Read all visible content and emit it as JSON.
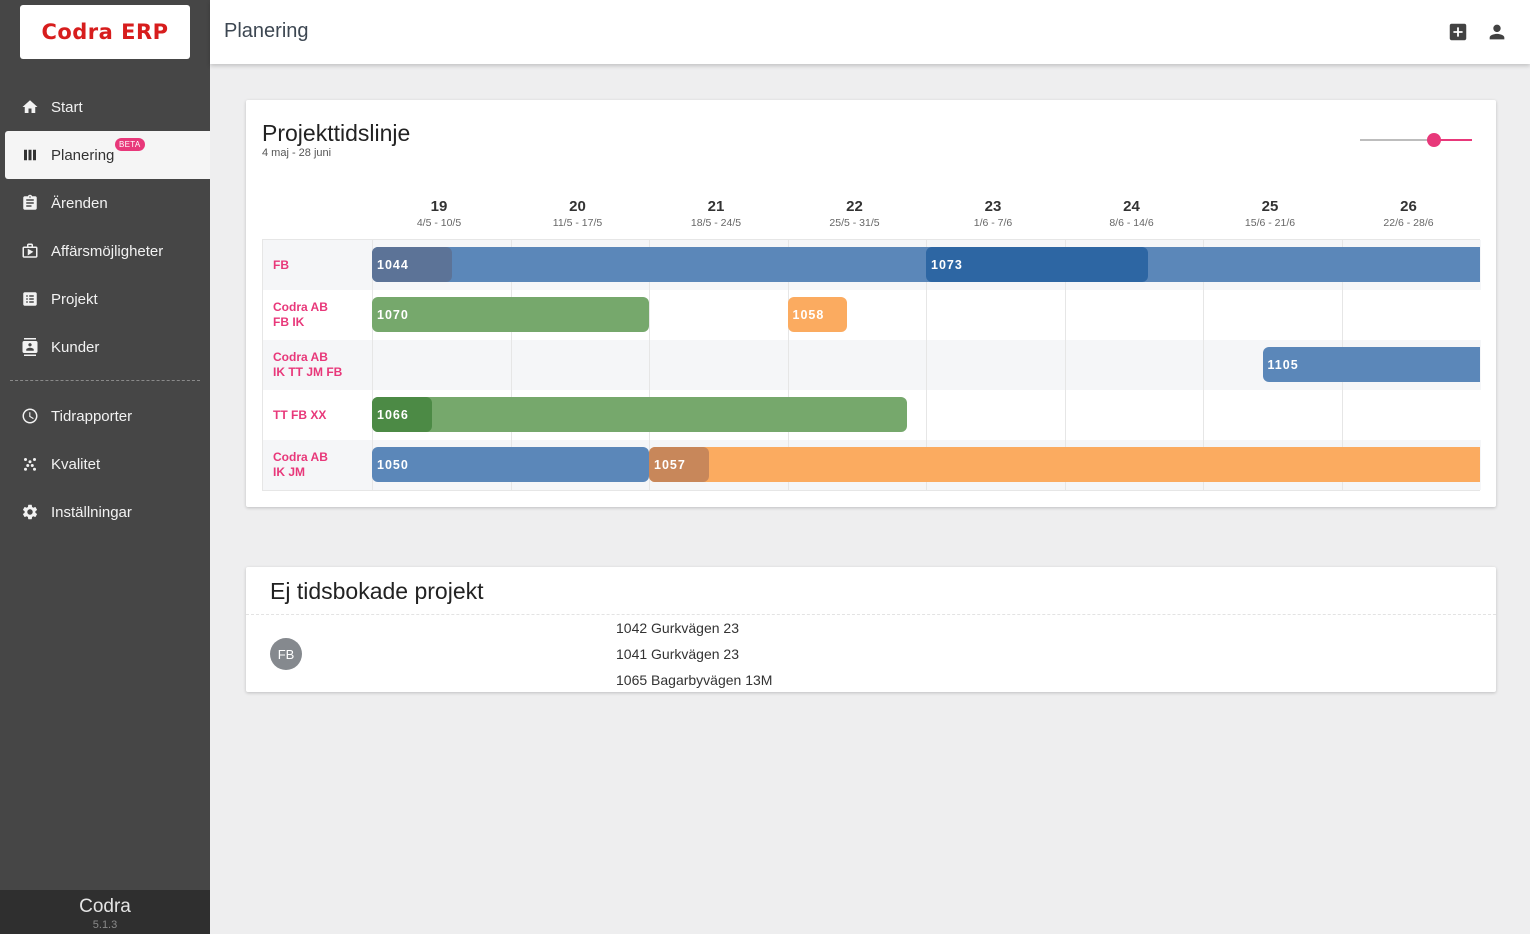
{
  "app": {
    "logo": "Codra ERP",
    "footer_name": "Codra",
    "footer_version": "5.1.3"
  },
  "sidebar": {
    "items": [
      {
        "label": "Start",
        "icon": "home-icon"
      },
      {
        "label": "Planering",
        "icon": "columns-icon",
        "badge": "BETA",
        "active": true
      },
      {
        "label": "Ärenden",
        "icon": "clipboard-icon"
      },
      {
        "label": "Affärsmöjligheter",
        "icon": "business-icon"
      },
      {
        "label": "Projekt",
        "icon": "project-icon"
      },
      {
        "label": "Kunder",
        "icon": "contacts-icon"
      },
      {
        "label": "Tidrapporter",
        "icon": "clock-icon"
      },
      {
        "label": "Kvalitet",
        "icon": "quality-icon"
      },
      {
        "label": "Inställningar",
        "icon": "gear-icon"
      }
    ]
  },
  "header": {
    "title": "Planering",
    "icons": [
      "add-box-icon",
      "account-icon"
    ]
  },
  "timeline": {
    "title": "Projekttidslinje",
    "subtitle": "4 maj - 28 juni",
    "zoom_level": 0.67,
    "weeks": [
      {
        "num": "19",
        "range": "4/5 - 10/5"
      },
      {
        "num": "20",
        "range": "11/5 - 17/5"
      },
      {
        "num": "21",
        "range": "18/5 - 24/5"
      },
      {
        "num": "22",
        "range": "25/5 - 31/5"
      },
      {
        "num": "23",
        "range": "1/6 - 7/6"
      },
      {
        "num": "24",
        "range": "8/6 - 14/6"
      },
      {
        "num": "25",
        "range": "15/6 - 21/6"
      },
      {
        "num": "26",
        "range": "22/6 - 28/6"
      }
    ],
    "rows": [
      {
        "line1": "FB",
        "line2": ""
      },
      {
        "line1": "Codra AB",
        "line2": "FB IK"
      },
      {
        "line1": "Codra AB",
        "line2": "IK TT JM FB"
      },
      {
        "line1": "TT FB XX",
        "line2": ""
      },
      {
        "line1": "Codra AB",
        "line2": "IK JM"
      }
    ],
    "bars": [
      {
        "label": "",
        "row": 0,
        "start_week": 0.0,
        "end_week": 8.0,
        "color": "#5b87b9"
      },
      {
        "label": "1044",
        "row": 0,
        "start_week": 0.0,
        "end_week": 0.58,
        "color": "#5c7397"
      },
      {
        "label": "1073",
        "row": 0,
        "start_week": 4.0,
        "end_week": 5.6,
        "color": "#2d66a3"
      },
      {
        "label": "1070",
        "row": 1,
        "start_week": 0.0,
        "end_week": 2.0,
        "color": "#76a86c"
      },
      {
        "label": "1058",
        "row": 1,
        "start_week": 3.0,
        "end_week": 3.43,
        "color": "#fbab60"
      },
      {
        "label": "1105",
        "row": 2,
        "start_week": 6.43,
        "end_week": 8.0,
        "color": "#5b87b9"
      },
      {
        "label": "",
        "row": 3,
        "start_week": 0.0,
        "end_week": 3.86,
        "color": "#76a86c"
      },
      {
        "label": "1066",
        "row": 3,
        "start_week": 0.0,
        "end_week": 0.43,
        "color": "#4c8a45"
      },
      {
        "label": "",
        "row": 4,
        "start_week": 2.0,
        "end_week": 8.0,
        "color": "#fbab60"
      },
      {
        "label": "1050",
        "row": 4,
        "start_week": 0.0,
        "end_week": 2.0,
        "color": "#5b87b9"
      },
      {
        "label": "1057",
        "row": 4,
        "start_week": 2.0,
        "end_week": 2.43,
        "color": "#c8875a"
      }
    ]
  },
  "unscheduled": {
    "title": "Ej tidsbokade projekt",
    "groups": [
      {
        "avatar": "FB",
        "items": [
          "1042 Gurkvägen 23",
          "1041 Gurkvägen 23",
          "1065 Bagarbyvägen 13M"
        ]
      }
    ]
  }
}
